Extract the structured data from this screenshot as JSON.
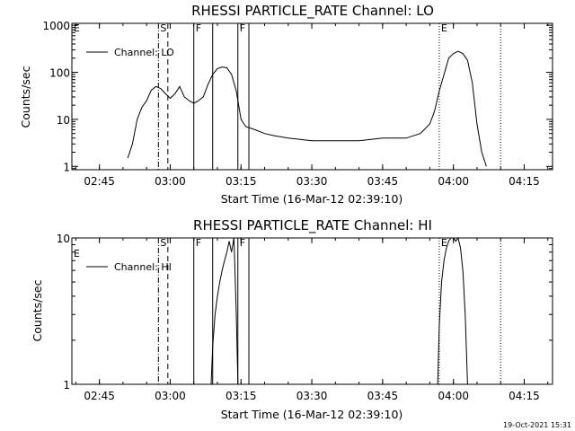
{
  "footer_timestamp": "19-Oct-2021 15:31",
  "chart_data": [
    {
      "type": "line",
      "title": "RHESSI PARTICLE_RATE Channel: LO",
      "xlabel": "Start Time (16-Mar-12 02:39:10)",
      "ylabel": "Counts/sec",
      "yscale": "log",
      "xticks": [
        "02:45",
        "03:00",
        "03:15",
        "03:30",
        "03:45",
        "04:00",
        "04:15"
      ],
      "yticks": [
        "1",
        "10",
        "100",
        "1000"
      ],
      "legend": "Channel: LO",
      "ylim": [
        0.85,
        1100
      ],
      "series": [
        {
          "name": "Channel: LO",
          "x": [
            "02:51:00",
            "02:52:00",
            "02:53:00",
            "02:54:00",
            "02:55:00",
            "02:56:00",
            "02:57:00",
            "02:58:00",
            "02:59:00",
            "03:00:00",
            "03:01:00",
            "03:02:00",
            "03:03:00",
            "03:04:00",
            "03:05:00",
            "03:06:00",
            "03:07:00",
            "03:08:00",
            "03:09:00",
            "03:10:00",
            "03:11:00",
            "03:12:00",
            "03:13:00",
            "03:14:00",
            "03:15:00",
            "03:16:00",
            "03:18:00",
            "03:20:00",
            "03:22:00",
            "03:25:00",
            "03:30:00",
            "03:35:00",
            "03:40:00",
            "03:45:00",
            "03:50:00",
            "03:53:00",
            "03:55:00",
            "03:56:00",
            "03:57:00",
            "03:58:00",
            "03:59:00",
            "04:00:00",
            "04:01:00",
            "04:02:00",
            "04:03:00",
            "04:04:00",
            "04:05:00",
            "04:06:00",
            "04:07:00"
          ],
          "y": [
            1.5,
            3,
            10,
            18,
            25,
            42,
            50,
            45,
            35,
            28,
            35,
            50,
            30,
            25,
            22,
            25,
            30,
            55,
            90,
            120,
            130,
            125,
            90,
            40,
            10,
            7,
            6,
            5,
            4.5,
            4,
            3.5,
            3.5,
            3.5,
            4,
            4,
            5,
            8,
            15,
            40,
            90,
            200,
            250,
            280,
            250,
            180,
            60,
            8,
            2,
            1
          ]
        }
      ],
      "markers": [
        {
          "label": "S",
          "time": "02:57:30",
          "style": "dash-dot"
        },
        {
          "label": "",
          "time": "02:59:30",
          "style": "dashed"
        },
        {
          "label": "F",
          "time": "03:05:00",
          "style": "solid"
        },
        {
          "label": "",
          "time": "03:09:00",
          "style": "solid"
        },
        {
          "label": "F",
          "time": "03:14:20",
          "style": "solid"
        },
        {
          "label": "",
          "time": "03:16:40",
          "style": "solid"
        },
        {
          "label": "E",
          "time": "03:57:00",
          "style": "dotted"
        },
        {
          "label": "",
          "time": "04:10:00",
          "style": "dotted"
        }
      ],
      "edge_markers": [
        "E"
      ]
    },
    {
      "type": "line",
      "title": "RHESSI PARTICLE_RATE Channel: HI",
      "xlabel": "Start Time (16-Mar-12 02:39:10)",
      "ylabel": "Counts/sec",
      "yscale": "log",
      "xticks": [
        "02:45",
        "03:00",
        "03:15",
        "03:30",
        "03:45",
        "04:00",
        "04:15"
      ],
      "yticks": [
        "1",
        "10"
      ],
      "legend": "Channel: HI",
      "ylim": [
        1,
        10
      ],
      "series": [
        {
          "name": "Channel: HI",
          "x": [
            "03:08:40",
            "03:09:00",
            "03:09:30",
            "03:10:00",
            "03:10:30",
            "03:11:00",
            "03:11:30",
            "03:12:00",
            "03:12:30",
            "03:13:00",
            "03:13:30",
            "03:14:00",
            "03:14:20",
            "03:56:40",
            "03:57:00",
            "03:57:30",
            "03:58:00",
            "03:58:30",
            "03:59:00",
            "03:59:30",
            "04:00:00",
            "04:00:30",
            "04:01:00",
            "04:01:30",
            "04:02:00",
            "04:02:30",
            "04:03:00"
          ],
          "y": [
            1,
            1.8,
            3,
            4,
            5,
            6,
            7,
            8,
            9.5,
            8,
            10,
            3,
            1,
            1,
            2.5,
            5,
            7,
            8.5,
            9.5,
            10,
            10,
            9.5,
            10,
            8.5,
            6,
            3,
            1
          ]
        }
      ],
      "markers": [
        {
          "label": "S",
          "time": "02:57:30",
          "style": "dash-dot"
        },
        {
          "label": "",
          "time": "02:59:30",
          "style": "dashed"
        },
        {
          "label": "F",
          "time": "03:05:00",
          "style": "solid"
        },
        {
          "label": "",
          "time": "03:09:00",
          "style": "solid"
        },
        {
          "label": "F",
          "time": "03:14:20",
          "style": "solid"
        },
        {
          "label": "",
          "time": "03:16:40",
          "style": "solid"
        },
        {
          "label": "E",
          "time": "03:57:00",
          "style": "dotted"
        },
        {
          "label": "",
          "time": "04:10:00",
          "style": "dotted"
        }
      ],
      "edge_markers": [
        "E"
      ]
    }
  ]
}
